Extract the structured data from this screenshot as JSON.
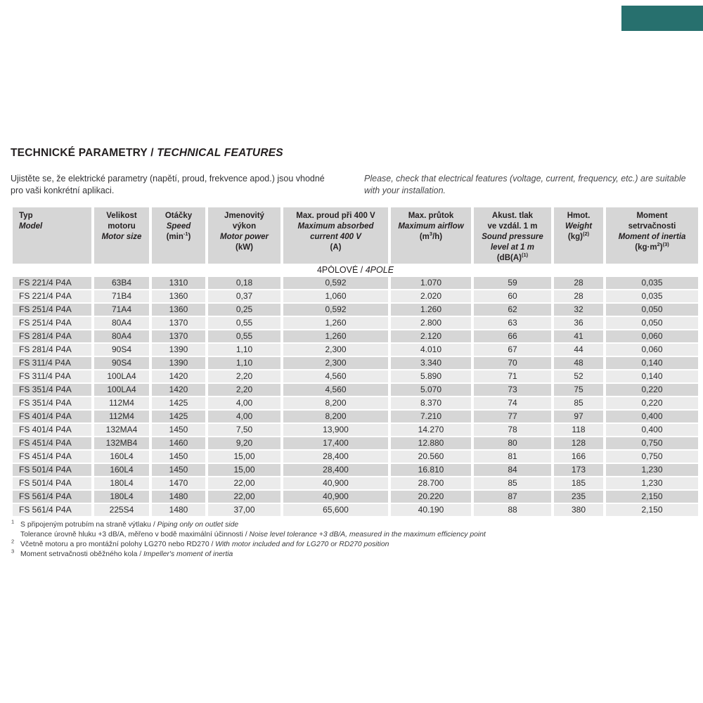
{
  "page": {
    "background": "#ffffff",
    "corner_tab_color": "#27706e",
    "header_bg": "#d6d6d6",
    "row_odd_bg": "#d6d6d6",
    "row_even_bg": "#ebebeb"
  },
  "title": {
    "cz": "TECHNICKÉ PARAMETRY",
    "separator": " / ",
    "en": "TECHNICAL FEATURES"
  },
  "intro": {
    "cz": "Ujistěte se, že elektrické parametry (napětí, proud, frekvence apod.) jsou vhodné pro vaši konkrétní aplikaci.",
    "en": "Please, check that electrical features (voltage, current, frequency, etc.) are suitable with your installation."
  },
  "table": {
    "columns": [
      {
        "cz": [
          "Typ"
        ],
        "en": [
          "Model"
        ],
        "unit": ""
      },
      {
        "cz": [
          "Velikost",
          "motoru"
        ],
        "en": [
          "Motor size"
        ],
        "unit": ""
      },
      {
        "cz": [
          "Otáčky"
        ],
        "en": [
          "Speed"
        ],
        "unit": "(min^{-1})"
      },
      {
        "cz": [
          "Jmenovitý",
          "výkon"
        ],
        "en": [
          "Motor power"
        ],
        "unit": "(kW)"
      },
      {
        "cz": [
          "Max. proud při 400 V"
        ],
        "en": [
          "Maximum absorbed",
          "current 400 V"
        ],
        "unit": "(A)"
      },
      {
        "cz": [
          "Max. průtok"
        ],
        "en": [
          "Maximum airflow"
        ],
        "unit": "(m^{3}/h)"
      },
      {
        "cz": [
          "Akust. tlak",
          "ve vzdál. 1 m"
        ],
        "en": [
          "Sound pressure",
          "level at 1 m"
        ],
        "unit": "(dB(A)^{(1)}"
      },
      {
        "cz": [
          "Hmot."
        ],
        "en": [
          "Weight"
        ],
        "unit": "(kg)^{(2)}"
      },
      {
        "cz": [
          "Moment",
          "setrvačnosti"
        ],
        "en": [
          "Moment of inertia"
        ],
        "unit": "(kg·m^{2})^{(3)}"
      }
    ],
    "section": {
      "cz": "4PÓLOVÉ",
      "separator": " / ",
      "en": "4POLE"
    },
    "rows": [
      [
        "FS 221/4 P4A",
        "63B4",
        "1310",
        "0,18",
        "0,592",
        "1.070",
        "59",
        "28",
        "0,035"
      ],
      [
        "FS 221/4 P4A",
        "71B4",
        "1360",
        "0,37",
        "1,060",
        "2.020",
        "60",
        "28",
        "0,035"
      ],
      [
        "FS 251/4 P4A",
        "71A4",
        "1360",
        "0,25",
        "0,592",
        "1.260",
        "62",
        "32",
        "0,050"
      ],
      [
        "FS 251/4 P4A",
        "80A4",
        "1370",
        "0,55",
        "1,260",
        "2.800",
        "63",
        "36",
        "0,050"
      ],
      [
        "FS 281/4 P4A",
        "80A4",
        "1370",
        "0,55",
        "1,260",
        "2.120",
        "66",
        "41",
        "0,060"
      ],
      [
        "FS 281/4 P4A",
        "90S4",
        "1390",
        "1,10",
        "2,300",
        "4.010",
        "67",
        "44",
        "0,060"
      ],
      [
        "FS 311/4 P4A",
        "90S4",
        "1390",
        "1,10",
        "2,300",
        "3.340",
        "70",
        "48",
        "0,140"
      ],
      [
        "FS 311/4 P4A",
        "100LA4",
        "1420",
        "2,20",
        "4,560",
        "5.890",
        "71",
        "52",
        "0,140"
      ],
      [
        "FS 351/4 P4A",
        "100LA4",
        "1420",
        "2,20",
        "4,560",
        "5.070",
        "73",
        "75",
        "0,220"
      ],
      [
        "FS 351/4 P4A",
        "112M4",
        "1425",
        "4,00",
        "8,200",
        "8.370",
        "74",
        "85",
        "0,220"
      ],
      [
        "FS 401/4 P4A",
        "112M4",
        "1425",
        "4,00",
        "8,200",
        "7.210",
        "77",
        "97",
        "0,400"
      ],
      [
        "FS 401/4 P4A",
        "132MA4",
        "1450",
        "7,50",
        "13,900",
        "14.270",
        "78",
        "118",
        "0,400"
      ],
      [
        "FS 451/4 P4A",
        "132MB4",
        "1460",
        "9,20",
        "17,400",
        "12.880",
        "80",
        "128",
        "0,750"
      ],
      [
        "FS 451/4 P4A",
        "160L4",
        "1450",
        "15,00",
        "28,400",
        "20.560",
        "81",
        "166",
        "0,750"
      ],
      [
        "FS 501/4 P4A",
        "160L4",
        "1450",
        "15,00",
        "28,400",
        "16.810",
        "84",
        "173",
        "1,230"
      ],
      [
        "FS 501/4 P4A",
        "180L4",
        "1470",
        "22,00",
        "40,900",
        "28.700",
        "85",
        "185",
        "1,230"
      ],
      [
        "FS 561/4 P4A",
        "180L4",
        "1480",
        "22,00",
        "40,900",
        "20.220",
        "87",
        "235",
        "2,150"
      ],
      [
        "FS 561/4 P4A",
        "225S4",
        "1480",
        "37,00",
        "65,600",
        "40.190",
        "88",
        "380",
        "2,150"
      ]
    ]
  },
  "footnotes": {
    "separator": " / ",
    "items": [
      {
        "marker": "1",
        "cz": "S připojeným potrubím na straně výtlaku",
        "en": "Piping only on outlet side"
      },
      {
        "marker": "",
        "cz": "Tolerance úrovně hluku +3 dB/A, měřeno v bodě maximální účinnosti",
        "en": "Noise level tolerance +3 dB/A, measured in the maximum efficiency point"
      },
      {
        "marker": "2",
        "cz": "Včetně motoru a pro montážní polohy LG270 nebo RD270",
        "en": "With motor included and for LG270 or RD270 position"
      },
      {
        "marker": "3",
        "cz": "Moment setrvačnosti oběžného kola",
        "en": "Impeller's moment of inertia"
      }
    ]
  }
}
